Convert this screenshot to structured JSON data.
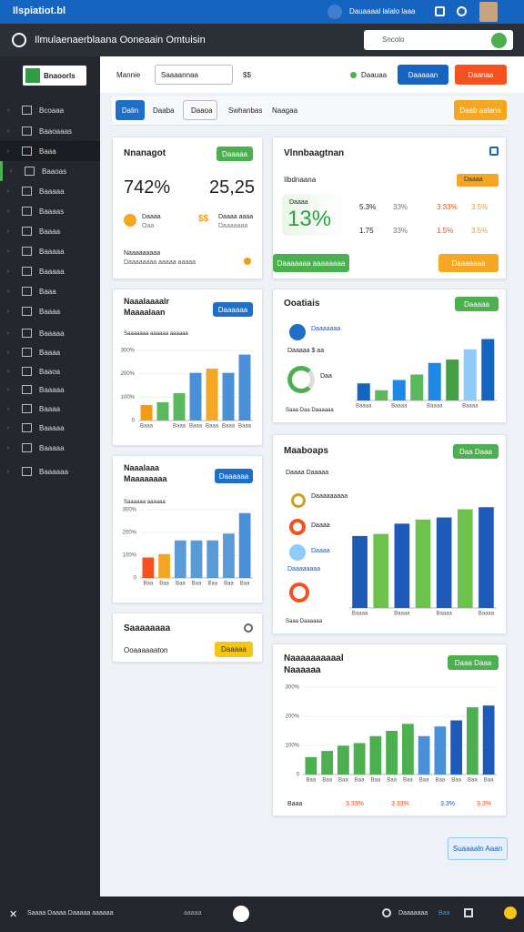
{
  "topbar": {
    "logo": "Ilspiatiot.bl",
    "account": "Dauaaaal lalalo laaa"
  },
  "header": {
    "title": "Ilmulaenaerblaana Ooneaain Omtuisin",
    "search": "Sncolo"
  },
  "sidebar": {
    "brand": "Bnaoorls",
    "items": [
      "Bcoaaa",
      "Baaoaaas",
      "Baaa",
      "Baaoas",
      "Baaaaa",
      "Baaaas",
      "Baaaa",
      "Baaaaa",
      "Baaaaa",
      "Baaa",
      "Baaaa",
      "Baaaaa",
      "Baaaa",
      "Baaoa",
      "Baaaaa",
      "Baaaa",
      "Baaaaa",
      "Baaaaa",
      "Baaaaaa"
    ]
  },
  "toolbar": {
    "label": "Mannie",
    "select": "Saaaannaa",
    "symbol": "$$",
    "status": "Daauaa",
    "primary": "Daaaaan",
    "danger": "Daanaa"
  },
  "tabs": [
    "Dalin",
    "Daaba",
    "Daaoa",
    "Swhanbas",
    "Naagaa"
  ],
  "tab_action": "Daab aalana",
  "kpi": {
    "title": "Nnanagot",
    "button": "Daaaaa",
    "value1": "742%",
    "value2": "25,25",
    "item1": "Daaaa",
    "item1b": "Oaa",
    "item2": "Daaaa aaaa",
    "item2b": "Daaaaaaa",
    "footer1": "Naaaaaaaaa",
    "footer2": "Daaaaaaaa aaaaa aaaaa"
  },
  "summary": {
    "title": "Vlnnbaagtnan",
    "subtitle": "Ilbdnaana",
    "badge": "Daaaa",
    "big_label": "Daaaa",
    "big": "13%",
    "rows": [
      [
        "5.3%",
        "33%",
        "3.33%",
        "3.5%"
      ],
      [
        "1.75",
        "33%",
        "1.5%",
        "3.5%"
      ]
    ],
    "button1": "Daaaaaaa aaaaaaaa",
    "button2": "Daaaaaaa"
  },
  "chart_a": {
    "title": "Naaalaaaalr",
    "subtitle": "Maaaalaan",
    "button": "Daaaaaa",
    "legend": "Saaaaaaa aaaaaa aaaaaa",
    "ylim": [
      0,
      300
    ],
    "yticks": [
      0,
      {
        "value": 100,
        "label": "100%"
      },
      {
        "value": 200,
        "label": "200%"
      },
      {
        "value": 300,
        "label": "300%"
      }
    ],
    "values": [
      66,
      78,
      117,
      204,
      222,
      204,
      282
    ],
    "colors": [
      "#f39c12",
      "#5cb85c",
      "#5cb85c",
      "#4a90d9",
      "#f5a623",
      "#4a90d9",
      "#4a90d9"
    ],
    "categories": [
      "Baaa",
      null,
      "Baaa",
      "Baaa",
      "Baaa",
      "Baaa",
      "Baaa"
    ]
  },
  "chart_b": {
    "title": "Ooatiais",
    "button": "Daaaaa",
    "legend1": "Daaaaaaa",
    "legend2": "Daaaaa $ aa",
    "legend3": "Daa",
    "footer": "Saaa Daa Daaaaaa",
    "ylim": [
      0,
      300
    ],
    "yticks": [],
    "values": [
      75,
      45,
      90,
      114,
      165,
      180,
      225,
      270
    ],
    "colors": [
      "#1565c0",
      "#5cb85c",
      "#1e88e5",
      "#5cb85c",
      "#1e88e5",
      "#43a047",
      "#90caf9",
      "#1565c0"
    ],
    "categories": [
      "Baaaa",
      null,
      "Baaaa",
      null,
      "Baaaa",
      null,
      "Baaaa",
      null
    ]
  },
  "chart_c": {
    "title": "Naaalaaa",
    "subtitle": "Maaaaaaaa",
    "button": "Daaaaaa",
    "legend": "Saaaaaa aaaaaa",
    "ylim": [
      0,
      300
    ],
    "yticks": [
      0,
      {
        "value": 100,
        "label": "100%"
      },
      {
        "value": 200,
        "label": "200%"
      },
      {
        "value": 300,
        "label": "300%"
      }
    ],
    "values": [
      90,
      105,
      165,
      165,
      165,
      195,
      285
    ],
    "colors": [
      "#f4511e",
      "#f5a623",
      "#5b9bd5",
      "#5b9bd5",
      "#5b9bd5",
      "#5b9bd5",
      "#4a90d9"
    ],
    "categories": [
      "Baa",
      "Baa",
      "Baa",
      "Baa",
      "Baa",
      "Baa",
      "Baa"
    ]
  },
  "chart_d": {
    "title": "Maaboaps",
    "button": "Daa Daaa",
    "legend": "Daaaa Daaaaa",
    "items": [
      "Daaaaaaaaa",
      "Daaaa",
      "Daaaa",
      "Daaaaaaaa"
    ],
    "footer": "Saaa Daaaaaa",
    "ylim": [
      0,
      300
    ],
    "yticks": [],
    "values": [
      210,
      216,
      246,
      258,
      264,
      288,
      294
    ],
    "colors": [
      "#1e5bb8",
      "#6cc24a",
      "#1e5bb8",
      "#6cc24a",
      "#1e5bb8",
      "#6cc24a",
      "#1e5bb8"
    ],
    "categories": [
      "Baaaa",
      null,
      "Baaaa",
      null,
      "Baaaa",
      null,
      "Baaaa"
    ]
  },
  "chart_e": {
    "title": "Naaaaaaaaaal",
    "subtitle": "Naaaaaa",
    "button": "Daaa Daaa",
    "ylim": [
      0,
      300
    ],
    "yticks": [
      0,
      {
        "value": 100,
        "label": "100%"
      },
      {
        "value": 200,
        "label": "200%"
      },
      {
        "value": 300,
        "label": "300%"
      }
    ],
    "values": [
      60,
      81,
      99,
      108,
      132,
      150,
      174,
      132,
      165,
      186,
      231,
      237
    ],
    "colors": [
      "#4caf50",
      "#4caf50",
      "#4caf50",
      "#4caf50",
      "#4caf50",
      "#4caf50",
      "#4caf50",
      "#4a90d9",
      "#4a90d9",
      "#1e5bb8",
      "#4caf50",
      "#1e5bb8"
    ],
    "categories": [
      "Baa",
      "Baa",
      "Baa",
      "Baa",
      "Baa",
      "Baa",
      "Baa",
      "Baa",
      "Baa",
      "Baa",
      "Baa",
      "Baa"
    ],
    "foot": [
      "Baaa",
      "3.33%",
      "3.33%",
      "3.3%",
      "3.3%"
    ]
  },
  "status": {
    "title": "Saaaaaaaa",
    "text": "Ooaaaaaaton",
    "button": "Daaaaa"
  },
  "save": "Suaaaaln Aaan",
  "bottombar": {
    "text": "Saaaa Daaaa Daaaaa aaaaaa",
    "mid": "aaaaa",
    "right": "Daaaaaaa",
    "tag": "Baa"
  }
}
